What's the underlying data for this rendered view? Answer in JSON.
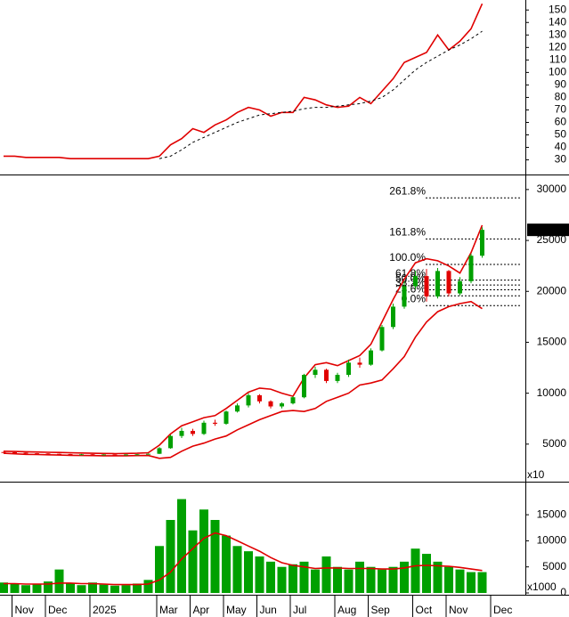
{
  "chart_data": [
    {
      "type": "line",
      "ylim": [
        19,
        158
      ],
      "yticks": [
        30,
        40,
        50,
        60,
        70,
        80,
        90,
        100,
        110,
        120,
        130,
        140,
        150
      ],
      "series": [
        {
          "color": "#e00000",
          "line_style": "solid",
          "values": [
            33,
            33,
            32,
            32,
            32,
            32,
            31,
            31,
            31,
            31,
            31,
            31,
            31,
            31,
            33,
            42,
            47,
            55,
            52,
            58,
            62,
            68,
            72,
            70,
            65,
            68,
            68,
            80,
            78,
            74,
            72,
            73,
            80,
            75,
            85,
            95,
            108,
            112,
            116,
            130,
            118,
            125,
            135,
            155,
            null
          ]
        },
        {
          "color": "#000000",
          "line_style": "dashed",
          "values": [
            null,
            null,
            null,
            null,
            null,
            null,
            null,
            null,
            null,
            null,
            null,
            null,
            null,
            null,
            31,
            33,
            38,
            44,
            48,
            52,
            56,
            60,
            63,
            66,
            67,
            68,
            69,
            71,
            72,
            72,
            73,
            74,
            75,
            77,
            80,
            86,
            94,
            102,
            108,
            113,
            118,
            122,
            127,
            133,
            null
          ]
        }
      ]
    },
    {
      "type": "candlestick",
      "ylim": [
        1400,
        31300
      ],
      "yticks": [
        5000,
        10000,
        15000,
        20000,
        25000,
        30000
      ],
      "axis_note": "x10",
      "up_color": "#00a000",
      "down_color": "#e00000",
      "open": [
        4220,
        4200,
        4150,
        4100,
        4080,
        4050,
        4030,
        4000,
        4000,
        3980,
        3980,
        3970,
        3980,
        4000,
        4050,
        4600,
        5800,
        6300,
        6000,
        7100,
        7000,
        8200,
        8800,
        9800,
        9200,
        8700,
        9000,
        9600,
        11800,
        12300,
        11200,
        11800,
        13000,
        12800,
        14200,
        16500,
        18500,
        20500,
        21500,
        19500,
        22000,
        19800,
        21000,
        23500,
        null
      ],
      "high": [
        4250,
        4220,
        4180,
        4120,
        4100,
        4070,
        4050,
        4030,
        4020,
        4000,
        3990,
        4000,
        4020,
        4080,
        4700,
        5900,
        6600,
        6500,
        7300,
        7400,
        8300,
        9000,
        10000,
        9900,
        9300,
        9100,
        9700,
        11900,
        12600,
        12400,
        12000,
        13300,
        13500,
        14400,
        16700,
        18800,
        21000,
        22000,
        22200,
        22300,
        22100,
        21400,
        23700,
        26300,
        null
      ],
      "low": [
        4180,
        4130,
        4080,
        4060,
        4030,
        4010,
        3980,
        3970,
        3960,
        3950,
        3950,
        3950,
        3970,
        3990,
        4030,
        4550,
        5600,
        5800,
        5900,
        6800,
        6900,
        8100,
        8600,
        9000,
        8500,
        8500,
        8900,
        9500,
        11500,
        11000,
        11000,
        11600,
        12500,
        12700,
        14100,
        16300,
        18300,
        20200,
        19000,
        19300,
        19500,
        19600,
        20800,
        23300,
        null
      ],
      "close": [
        4200,
        4150,
        4100,
        4080,
        4050,
        4030,
        4000,
        4000,
        3980,
        3980,
        3970,
        3980,
        4000,
        4050,
        4600,
        5800,
        6300,
        6000,
        7100,
        7000,
        8200,
        8800,
        9800,
        9200,
        8700,
        9000,
        9600,
        11800,
        12300,
        11200,
        11800,
        13000,
        12800,
        14200,
        16500,
        18500,
        20500,
        21500,
        19500,
        22000,
        19800,
        21000,
        23500,
        26040,
        null
      ],
      "series": [
        {
          "color": "#e00000",
          "values": [
            4300,
            4280,
            4250,
            4220,
            4200,
            4180,
            4150,
            4130,
            4100,
            4080,
            4070,
            4080,
            4100,
            4150,
            4900,
            6000,
            6800,
            7200,
            7600,
            7800,
            8500,
            9300,
            10100,
            10500,
            10400,
            10000,
            9700,
            11500,
            12800,
            13000,
            12700,
            13200,
            13700,
            14800,
            17000,
            19200,
            21200,
            22800,
            23200,
            23000,
            22500,
            21800,
            23800,
            26500,
            null
          ]
        },
        {
          "color": "#e00000",
          "values": [
            4100,
            4050,
            4000,
            3980,
            3950,
            3930,
            3900,
            3880,
            3870,
            3860,
            3860,
            3860,
            3870,
            3880,
            3600,
            3700,
            4300,
            4800,
            5100,
            5500,
            5800,
            6400,
            6900,
            7400,
            7800,
            8200,
            8300,
            8200,
            8500,
            9200,
            9600,
            10000,
            10800,
            11000,
            11300,
            12400,
            13600,
            15500,
            17000,
            18000,
            18500,
            18800,
            19000,
            18300,
            null
          ]
        }
      ],
      "fibonacci": [
        {
          "label": "261.8%",
          "value": 29180
        },
        {
          "label": "161.8%",
          "value": 25150
        },
        {
          "label": "100.0%",
          "value": 22650
        },
        {
          "label": "61.8%",
          "value": 21100
        },
        {
          "label": "50.0%",
          "value": 20620
        },
        {
          "label": "38.2%",
          "value": 20150
        },
        {
          "label": "23.6%",
          "value": 19560
        },
        {
          "label": "0.0%",
          "value": 18600
        }
      ],
      "fib_label_color": "#0000ff",
      "last_price": {
        "value": 26040,
        "label": "26040.0"
      }
    },
    {
      "type": "bar",
      "ylim": [
        0,
        21000
      ],
      "yticks": [
        0,
        5000,
        10000,
        15000
      ],
      "axis_note": "x1000",
      "color": "#00a000",
      "categories": [
        null,
        "Nov",
        null,
        null,
        "Dec",
        null,
        null,
        null,
        "2025",
        null,
        null,
        null,
        null,
        null,
        "Mar",
        null,
        null,
        "Apr",
        null,
        null,
        "May",
        null,
        null,
        "Jun",
        null,
        null,
        "Jul",
        null,
        null,
        null,
        "Aug",
        null,
        null,
        "Sep",
        null,
        null,
        null,
        "Oct",
        null,
        null,
        "Nov",
        null,
        null,
        null,
        "Dec"
      ],
      "values": [
        2000,
        1800,
        1500,
        1700,
        2200,
        4500,
        1800,
        1500,
        2000,
        1600,
        1400,
        1500,
        1800,
        2500,
        9000,
        14000,
        18000,
        12000,
        16000,
        14000,
        11000,
        9000,
        8000,
        7000,
        6000,
        5000,
        5500,
        6000,
        4500,
        7000,
        5000,
        4500,
        6000,
        5000,
        4500,
        5000,
        6000,
        8500,
        7500,
        6000,
        5000,
        4500,
        4000,
        4000,
        null
      ],
      "series": [
        {
          "color": "#e00000",
          "values": [
            1800,
            1800,
            1700,
            1700,
            1700,
            1900,
            1900,
            1800,
            1800,
            1700,
            1600,
            1600,
            1600,
            1700,
            2500,
            4000,
            6500,
            8500,
            10500,
            11500,
            11000,
            10000,
            9000,
            8000,
            6800,
            5800,
            5300,
            5000,
            4700,
            4800,
            4800,
            4700,
            4700,
            4700,
            4600,
            4600,
            4800,
            5200,
            5300,
            5200,
            5100,
            4900,
            4600,
            4300,
            null
          ]
        }
      ]
    }
  ]
}
